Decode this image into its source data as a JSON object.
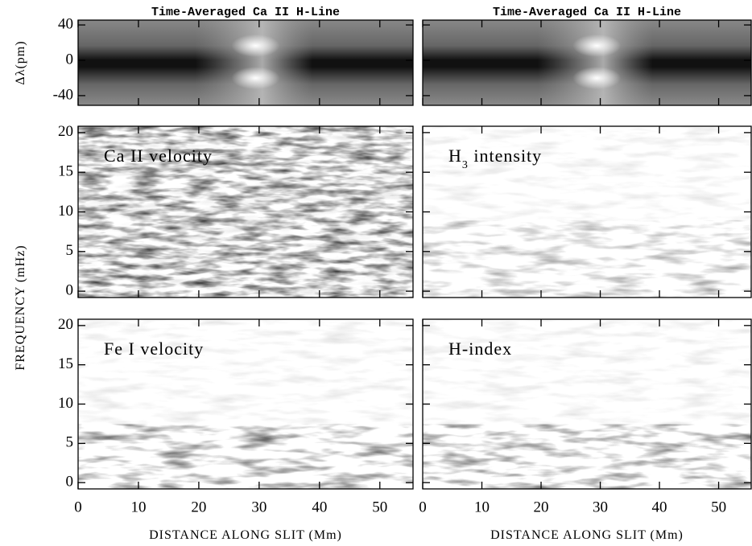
{
  "chart_data": [
    {
      "type": "heatmap",
      "title": "Time-Averaged Ca II H-Line",
      "ylabel": "Δλ(pm)",
      "xlim": [
        0,
        55.5
      ],
      "xticks": [
        0,
        10,
        20,
        30,
        40,
        50
      ],
      "ylim": [
        -51,
        45.5
      ],
      "yticks": [
        40,
        0,
        -40
      ]
    },
    {
      "type": "heatmap",
      "title": "Time-Averaged Ca II H-Line",
      "xlim": [
        0,
        55.5
      ],
      "xticks": [
        0,
        10,
        20,
        30,
        40,
        50
      ],
      "ylim": [
        -51,
        45.5
      ],
      "yticks": [
        40,
        0,
        -40
      ]
    },
    {
      "type": "heatmap",
      "annotation": "Ca II velocity",
      "ylabel": "FREQUENCY (mHz)",
      "xlim": [
        0,
        55.5
      ],
      "xticks": [
        0,
        10,
        20,
        30,
        40,
        50
      ],
      "ylim": [
        -0.8,
        20.8
      ],
      "yticks": [
        0,
        5,
        10,
        15,
        20
      ]
    },
    {
      "type": "heatmap",
      "annotation": [
        "H",
        "3",
        " intensity"
      ],
      "xlim": [
        0,
        55.5
      ],
      "xticks": [
        0,
        10,
        20,
        30,
        40,
        50
      ],
      "ylim": [
        -0.8,
        20.8
      ],
      "yticks": [
        0,
        5,
        10,
        15,
        20
      ]
    },
    {
      "type": "heatmap",
      "annotation": "Fe I velocity",
      "xlabel": "DISTANCE ALONG SLIT (Mm)",
      "xlim": [
        0,
        55.5
      ],
      "xticks": [
        0,
        10,
        20,
        30,
        40,
        50
      ],
      "ylim": [
        -0.8,
        20.8
      ],
      "yticks": [
        0,
        5,
        10,
        15,
        20
      ]
    },
    {
      "type": "heatmap",
      "annotation": "H-index",
      "xlabel": "DISTANCE ALONG SLIT (Mm)",
      "xlim": [
        0,
        55.5
      ],
      "xticks": [
        0,
        10,
        20,
        30,
        40,
        50
      ],
      "ylim": [
        -0.8,
        20.8
      ],
      "yticks": [
        0,
        5,
        10,
        15,
        20
      ]
    }
  ]
}
